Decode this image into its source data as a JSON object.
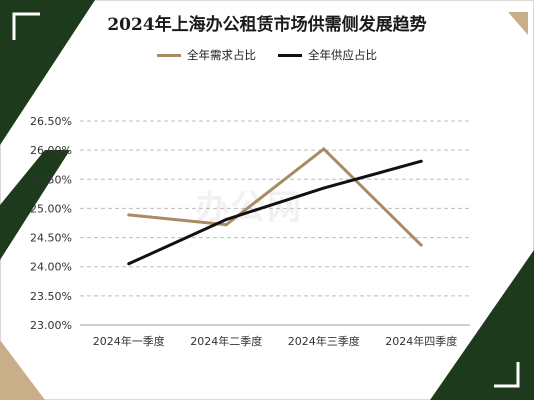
{
  "title": "2024年上海办公租赁市场供需侧发展趋势",
  "watermark": "办公网",
  "colors": {
    "demand": "#a98b63",
    "supply": "#111111",
    "dark_green": "#1d3a1c",
    "tan": "#c9ae8a",
    "grid": "#bdbdbd"
  },
  "chart_data": {
    "type": "line",
    "title": "2024年上海办公租赁市场供需侧发展趋势",
    "categories": [
      "2024年一季度",
      "2024年二季度",
      "2024年三季度",
      "2024年四季度"
    ],
    "series": [
      {
        "name": "全年需求占比",
        "values": [
          24.89,
          24.72,
          26.02,
          24.37
        ]
      },
      {
        "name": "全年供应占比",
        "values": [
          24.05,
          24.81,
          25.35,
          25.81
        ]
      }
    ],
    "y_ticks": [
      "23.00%",
      "23.50%",
      "24.00%",
      "24.50%",
      "25.00%",
      "25.50%",
      "26.00%",
      "26.50%"
    ],
    "ylim": [
      23.0,
      26.5
    ],
    "grid": true,
    "legend_position": "top"
  }
}
